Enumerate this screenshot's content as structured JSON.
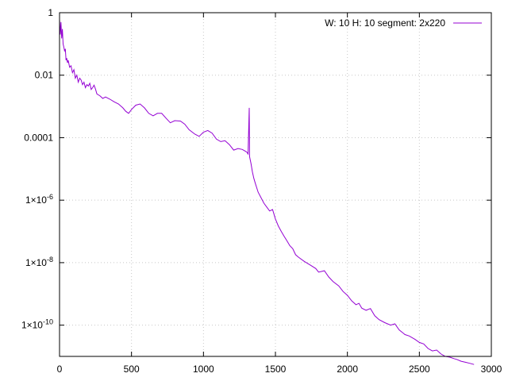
{
  "chart_data": {
    "type": "line",
    "title": "",
    "xlabel": "",
    "ylabel": "",
    "xlim": [
      0,
      3000
    ],
    "ylim": [
      1e-11,
      1
    ],
    "yscale": "log",
    "grid": true,
    "legend_position": "top-right",
    "x_ticks": [
      0,
      500,
      1000,
      1500,
      2000,
      2500,
      3000
    ],
    "x_tick_labels": [
      "0",
      "500",
      "1000",
      "1500",
      "2000",
      "2500",
      "3000"
    ],
    "y_ticks": [
      1,
      0.01,
      0.0001,
      1e-06,
      1e-08,
      1e-10
    ],
    "y_tick_labels": [
      {
        "mantissa": "1",
        "exp": ""
      },
      {
        "mantissa": "0.01",
        "exp": ""
      },
      {
        "mantissa": "0.0001",
        "exp": ""
      },
      {
        "mantissa": "1×10",
        "exp": "-6"
      },
      {
        "mantissa": "1×10",
        "exp": "-8"
      },
      {
        "mantissa": "1×10",
        "exp": "-10"
      }
    ],
    "series": [
      {
        "name": "W: 10 H: 10 segment: 2x220",
        "color": "#9400d3",
        "points": [
          [
            0,
            0.6
          ],
          [
            5,
            0.2
          ],
          [
            10,
            0.5
          ],
          [
            15,
            0.15
          ],
          [
            20,
            0.3
          ],
          [
            25,
            0.1
          ],
          [
            30,
            0.08
          ],
          [
            35,
            0.06
          ],
          [
            40,
            0.07
          ],
          [
            45,
            0.03
          ],
          [
            50,
            0.035
          ],
          [
            55,
            0.025
          ],
          [
            60,
            0.03
          ],
          [
            70,
            0.018
          ],
          [
            80,
            0.02
          ],
          [
            90,
            0.012
          ],
          [
            100,
            0.015
          ],
          [
            110,
            0.008
          ],
          [
            120,
            0.01
          ],
          [
            130,
            0.006
          ],
          [
            140,
            0.008
          ],
          [
            150,
            0.007
          ],
          [
            160,
            0.005
          ],
          [
            170,
            0.006
          ],
          [
            180,
            0.004
          ],
          [
            190,
            0.005
          ],
          [
            200,
            0.0045
          ],
          [
            210,
            0.0055
          ],
          [
            220,
            0.0035
          ],
          [
            230,
            0.004
          ],
          [
            240,
            0.0048
          ],
          [
            250,
            0.0036
          ],
          [
            260,
            0.0025
          ],
          [
            280,
            0.0022
          ],
          [
            300,
            0.0018
          ],
          [
            320,
            0.002
          ],
          [
            350,
            0.0017
          ],
          [
            380,
            0.0014
          ],
          [
            410,
            0.0012
          ],
          [
            440,
            0.0009
          ],
          [
            460,
            0.0007
          ],
          [
            480,
            0.0006
          ],
          [
            500,
            0.0008
          ],
          [
            530,
            0.0011
          ],
          [
            560,
            0.0012
          ],
          [
            590,
            0.0009
          ],
          [
            620,
            0.0006
          ],
          [
            650,
            0.0005
          ],
          [
            680,
            0.0006
          ],
          [
            710,
            0.0006
          ],
          [
            740,
            0.00042
          ],
          [
            770,
            0.0003
          ],
          [
            800,
            0.00035
          ],
          [
            840,
            0.00034
          ],
          [
            870,
            0.00027
          ],
          [
            900,
            0.00018
          ],
          [
            940,
            0.00013
          ],
          [
            970,
            0.00011
          ],
          [
            1000,
            0.00015
          ],
          [
            1030,
            0.00017
          ],
          [
            1060,
            0.00014
          ],
          [
            1090,
            9e-05
          ],
          [
            1120,
            7.5e-05
          ],
          [
            1150,
            8e-05
          ],
          [
            1180,
            6e-05
          ],
          [
            1210,
            4e-05
          ],
          [
            1240,
            4.5e-05
          ],
          [
            1270,
            4.2e-05
          ],
          [
            1300,
            3.5e-05
          ],
          [
            1310,
            3e-05
          ],
          [
            1318,
            0.0009
          ],
          [
            1320,
            2.5e-05
          ],
          [
            1330,
            1.5e-05
          ],
          [
            1340,
            8e-06
          ],
          [
            1350,
            5e-06
          ],
          [
            1360,
            3.5e-06
          ],
          [
            1380,
            1.8e-06
          ],
          [
            1400,
            1.2e-06
          ],
          [
            1420,
            8e-07
          ],
          [
            1440,
            6e-07
          ],
          [
            1460,
            4.5e-07
          ],
          [
            1480,
            5e-07
          ],
          [
            1500,
            2.5e-07
          ],
          [
            1520,
            1.5e-07
          ],
          [
            1540,
            1e-07
          ],
          [
            1560,
            7e-08
          ],
          [
            1580,
            5e-08
          ],
          [
            1600,
            3.5e-08
          ],
          [
            1620,
            2.8e-08
          ],
          [
            1640,
            1.8e-08
          ],
          [
            1660,
            1.5e-08
          ],
          [
            1700,
            1.1e-08
          ],
          [
            1740,
            8.5e-09
          ],
          [
            1780,
            6.5e-09
          ],
          [
            1800,
            5e-09
          ],
          [
            1840,
            5.5e-09
          ],
          [
            1870,
            3.5e-09
          ],
          [
            1900,
            2.5e-09
          ],
          [
            1940,
            1.8e-09
          ],
          [
            1970,
            1.2e-09
          ],
          [
            2000,
            9e-10
          ],
          [
            2030,
            6e-10
          ],
          [
            2060,
            4.5e-10
          ],
          [
            2080,
            5e-10
          ],
          [
            2100,
            3.5e-10
          ],
          [
            2130,
            3e-10
          ],
          [
            2160,
            3.4e-10
          ],
          [
            2190,
            2e-10
          ],
          [
            2220,
            1.5e-10
          ],
          [
            2260,
            1.2e-10
          ],
          [
            2300,
            1e-10
          ],
          [
            2330,
            1.1e-10
          ],
          [
            2360,
            7e-11
          ],
          [
            2400,
            5e-11
          ],
          [
            2430,
            4.5e-11
          ],
          [
            2470,
            3.5e-11
          ],
          [
            2500,
            2.8e-11
          ],
          [
            2530,
            2.5e-11
          ],
          [
            2560,
            1.8e-11
          ],
          [
            2590,
            1.5e-11
          ],
          [
            2620,
            1.6e-11
          ],
          [
            2650,
            1.2e-11
          ],
          [
            2680,
            1e-11
          ],
          [
            2710,
            9.5e-12
          ],
          [
            2740,
            8.5e-12
          ],
          [
            2760,
            8e-12
          ],
          [
            2790,
            7e-12
          ],
          [
            2820,
            6.5e-12
          ],
          [
            2850,
            6e-12
          ],
          [
            2880,
            5.5e-12
          ]
        ]
      }
    ]
  }
}
